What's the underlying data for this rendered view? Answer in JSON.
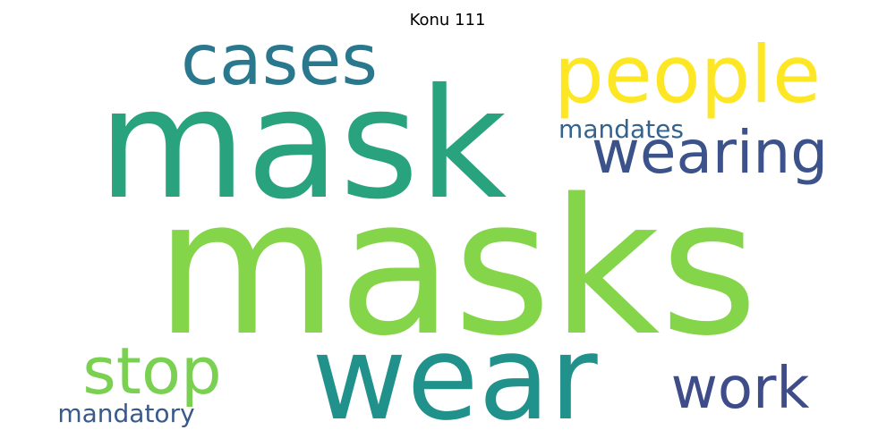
{
  "title": "Konu 111",
  "words": [
    {
      "text": "masks",
      "color": "#85d54a"
    },
    {
      "text": "mask",
      "color": "#29a37e"
    },
    {
      "text": "wear",
      "color": "#21918c"
    },
    {
      "text": "people",
      "color": "#fde725"
    },
    {
      "text": "cases",
      "color": "#2a788e"
    },
    {
      "text": "wearing",
      "color": "#3b528b"
    },
    {
      "text": "stop",
      "color": "#7ad151"
    },
    {
      "text": "work",
      "color": "#3e4c8a"
    },
    {
      "text": "mandates",
      "color": "#33638d"
    },
    {
      "text": "mandatory",
      "color": "#38598c"
    }
  ]
}
